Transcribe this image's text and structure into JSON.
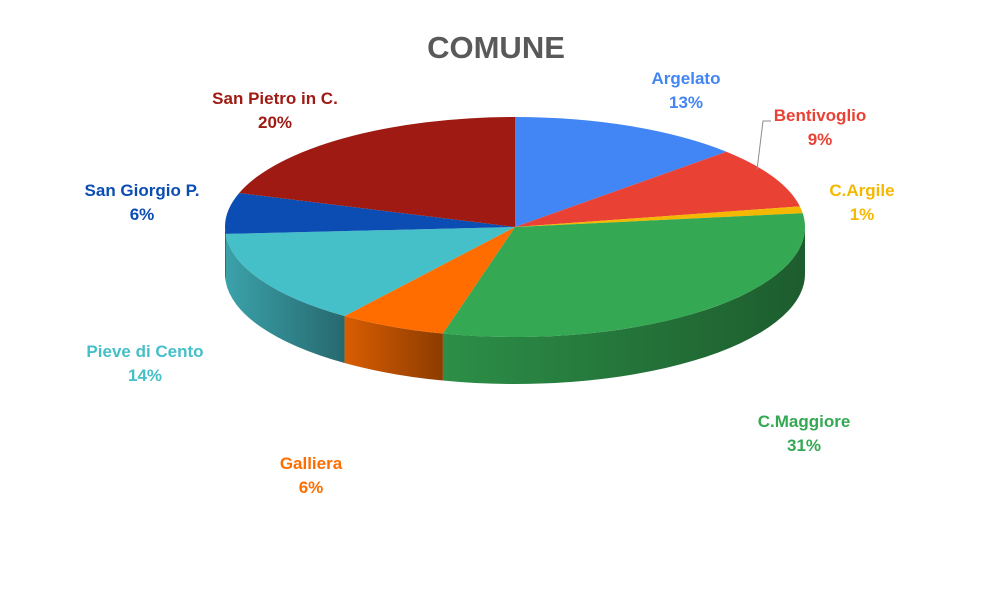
{
  "chart_data": {
    "type": "pie",
    "title": "COMUNE",
    "style": "3d",
    "categories": [
      "Argelato",
      "Bentivoglio",
      "C.Argile",
      "C.Maggiore",
      "Galliera",
      "Pieve di Cento",
      "San Giorgio P.",
      "San Pietro in C."
    ],
    "values": [
      13,
      9,
      1,
      31,
      6,
      14,
      6,
      20
    ],
    "percent_labels": [
      "13%",
      "9%",
      "1%",
      "31%",
      "6%",
      "14%",
      "6%",
      "20%"
    ],
    "colors": [
      "#4285F4",
      "#E94235",
      "#F5B800",
      "#34A853",
      "#FF6D01",
      "#45BFC8",
      "#0B4DB3",
      "#9E1A12"
    ],
    "legend": "none"
  }
}
